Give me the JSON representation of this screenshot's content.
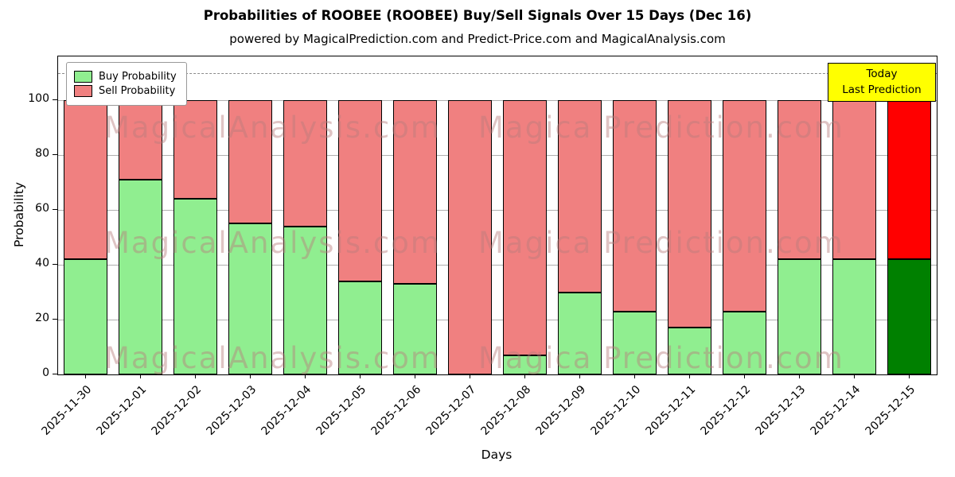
{
  "title": "Probabilities of ROOBEE (ROOBEE) Buy/Sell Signals Over 15 Days (Dec 16)",
  "subtitle": "powered by MagicalPrediction.com and Predict-Price.com and MagicalAnalysis.com",
  "legend": {
    "buy_label": "Buy Probability",
    "sell_label": "Sell Probability"
  },
  "today_box": {
    "line1": "Today",
    "line2": "Last Prediction"
  },
  "watermarks": {
    "left": "MagicalAnalysis.com",
    "right": "Magica Prediction.com"
  },
  "colors": {
    "buy": "#90EE90",
    "sell": "#F08080",
    "today_buy": "#008000",
    "today_sell": "#FF0000",
    "today_box_bg": "#FFFF00",
    "grid": "#B0B0B0"
  },
  "chart_data": {
    "type": "bar",
    "stacked": true,
    "title": "Probabilities of ROOBEE (ROOBEE) Buy/Sell Signals Over 15 Days (Dec 16)",
    "xlabel": "Days",
    "ylabel": "Probability",
    "ylim": [
      0,
      116
    ],
    "yticks": [
      0,
      20,
      40,
      60,
      80,
      100
    ],
    "dashed_line_y": 110,
    "grid": true,
    "legend_position": "upper left",
    "categories": [
      "2025-11-30",
      "2025-12-01",
      "2025-12-02",
      "2025-12-03",
      "2025-12-04",
      "2025-12-05",
      "2025-12-06",
      "2025-12-07",
      "2025-12-08",
      "2025-12-09",
      "2025-12-10",
      "2025-12-11",
      "2025-12-12",
      "2025-12-13",
      "2025-12-14",
      "2025-12-15"
    ],
    "series": [
      {
        "name": "Buy Probability",
        "color": "#90EE90",
        "today_color": "#008000",
        "values": [
          42,
          71,
          64,
          55,
          54,
          34,
          33,
          0,
          7,
          30,
          23,
          17,
          23,
          42,
          42,
          42
        ]
      },
      {
        "name": "Sell Probability",
        "color": "#F08080",
        "today_color": "#FF0000",
        "values": [
          58,
          29,
          36,
          45,
          46,
          66,
          67,
          100,
          93,
          70,
          77,
          83,
          77,
          58,
          58,
          58
        ]
      }
    ],
    "bar_edge_color": "#000000"
  }
}
